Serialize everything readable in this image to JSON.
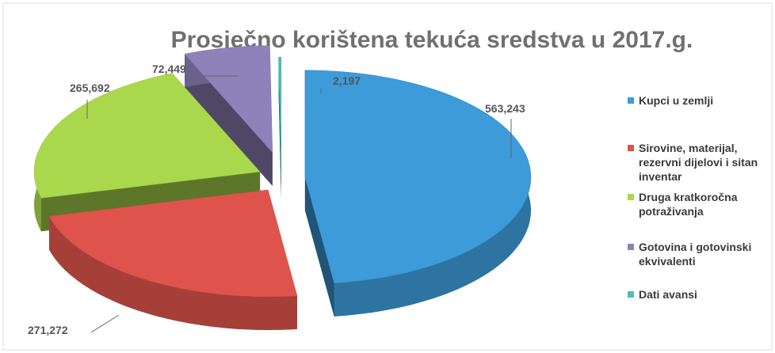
{
  "chart_data": {
    "type": "pie",
    "title": "Prosječno korištena tekuća sredstva u 2017.g.",
    "categories": [
      "Kupci u zemlji",
      "Sirovine, materijal, rezervni dijelovi i sitan inventar",
      "Druga kratkoročna potraživanja",
      "Gotovina i gotovinski ekvivalenti",
      "Dati avansi"
    ],
    "values": [
      563243,
      271272,
      265692,
      72449,
      2197
    ],
    "value_labels": [
      "563,243",
      "271,272",
      "265,692",
      "72,449",
      "2,197"
    ],
    "colors": [
      "#3c9bd8",
      "#de544c",
      "#a9d84c",
      "#8d82ba",
      "#4cc0b2"
    ]
  }
}
